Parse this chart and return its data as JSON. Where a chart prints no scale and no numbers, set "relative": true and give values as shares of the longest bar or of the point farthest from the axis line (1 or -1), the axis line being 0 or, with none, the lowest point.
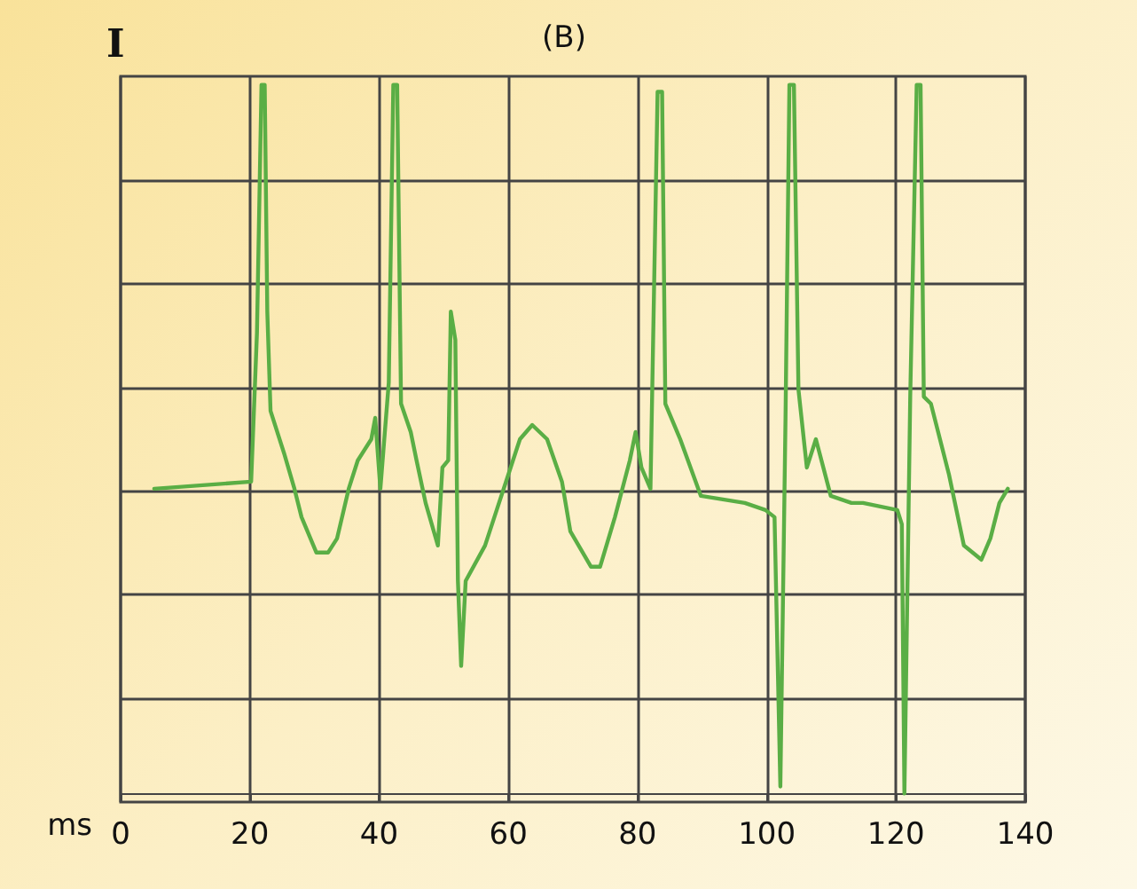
{
  "chart_data": {
    "type": "line",
    "title": "(B)",
    "ylabel": "I",
    "xlabel": "ms",
    "relative": true,
    "grid": true,
    "marker": "none",
    "line_style": "solid",
    "xlim": [
      0,
      140
    ],
    "xticks": [
      0,
      20,
      40,
      60,
      80,
      100,
      120,
      140
    ],
    "x": [
      5.2,
      20.2,
      21.1,
      21.8,
      22.3,
      22.7,
      23.2,
      25.3,
      26.9,
      28.0,
      30.3,
      32.1,
      33.5,
      35.3,
      36.7,
      38.8,
      39.4,
      40.2,
      41.5,
      42.2,
      42.8,
      43.4,
      44.9,
      45.8,
      47.2,
      49.1,
      49.8,
      50.7,
      51.1,
      51.8,
      52.2,
      52.7,
      53.4,
      56.4,
      58.2,
      60.0,
      61.8,
      63.7,
      66.0,
      68.3,
      69.6,
      72.8,
      74.2,
      76.5,
      78.8,
      79.7,
      80.6,
      82.0,
      83.1,
      83.8,
      84.3,
      86.6,
      89.8,
      96.6,
      99.8,
      101.2,
      102.1,
      102.9,
      103.5,
      104.2,
      104.9,
      106.2,
      107.6,
      109.9,
      113.1,
      114.9,
      120.2,
      120.9,
      121.3,
      122.2,
      123.2,
      123.8,
      124.3,
      125.4,
      128.2,
      130.5,
      133.2,
      134.6,
      136.0,
      137.3
    ],
    "series": [
      {
        "color": "#5aae45",
        "values": [
          0.43,
          0.44,
          0.65,
          1.0,
          1.0,
          0.68,
          0.54,
          0.48,
          0.43,
          0.39,
          0.34,
          0.34,
          0.36,
          0.43,
          0.47,
          0.5,
          0.53,
          0.43,
          0.58,
          1.0,
          1.0,
          0.55,
          0.51,
          0.47,
          0.41,
          0.35,
          0.46,
          0.47,
          0.68,
          0.64,
          0.3,
          0.18,
          0.3,
          0.35,
          0.4,
          0.45,
          0.5,
          0.52,
          0.5,
          0.44,
          0.37,
          0.32,
          0.32,
          0.39,
          0.47,
          0.51,
          0.46,
          0.43,
          0.99,
          0.99,
          0.55,
          0.5,
          0.42,
          0.41,
          0.4,
          0.39,
          0.01,
          0.53,
          1.0,
          1.0,
          0.57,
          0.46,
          0.5,
          0.42,
          0.41,
          0.41,
          0.4,
          0.38,
          0,
          0.56,
          1.0,
          1.0,
          0.56,
          0.55,
          0.45,
          0.35,
          0.33,
          0.36,
          0.41,
          0.43
        ]
      }
    ]
  }
}
